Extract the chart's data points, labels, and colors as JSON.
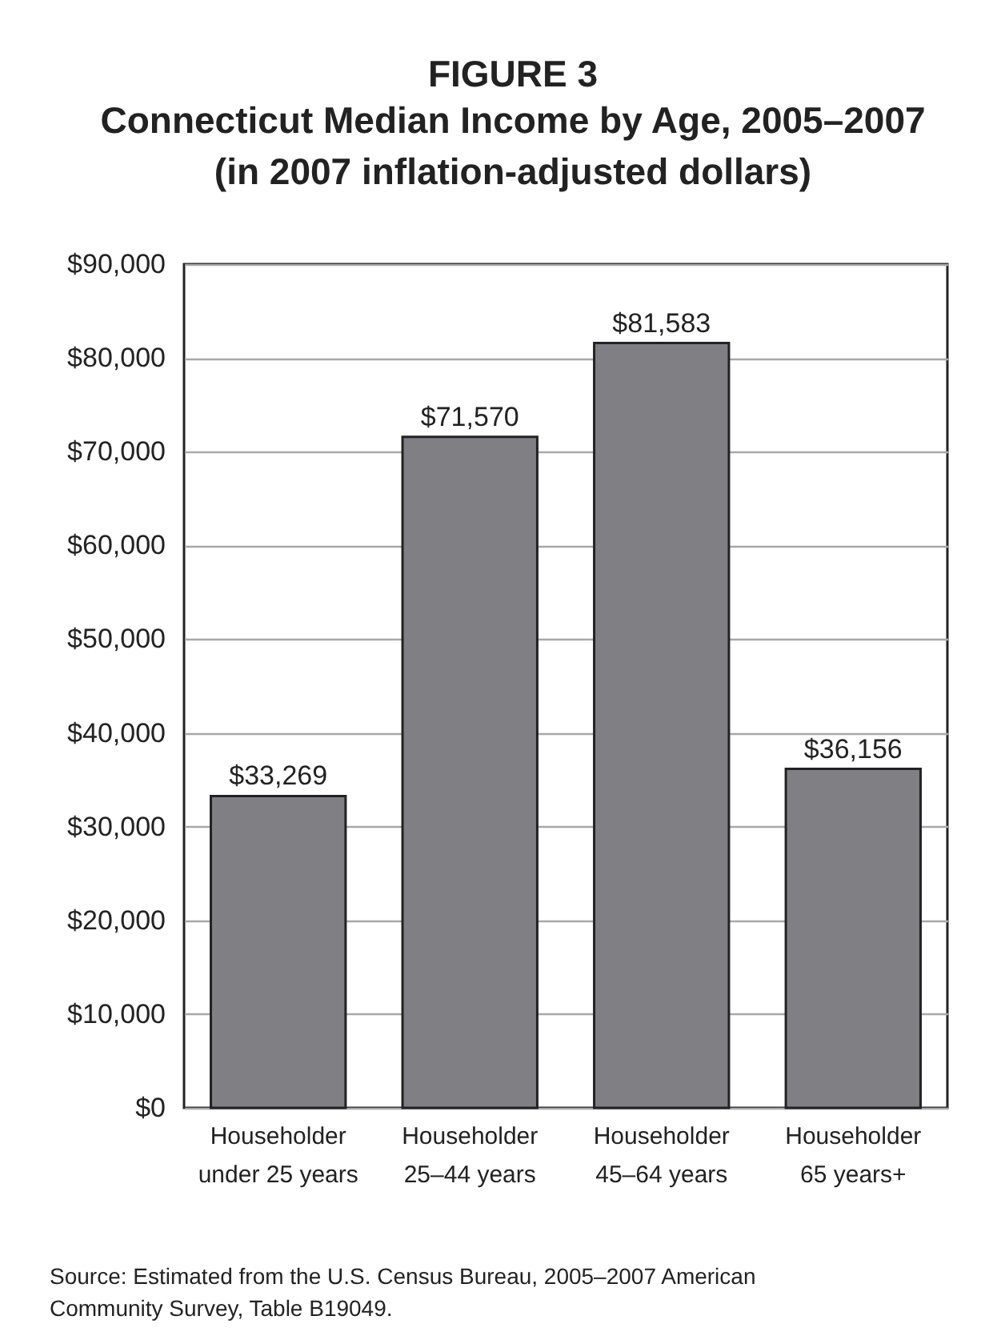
{
  "chart_data": {
    "type": "bar",
    "title": "FIGURE 3",
    "subtitle": "Connecticut Median Income by Age, 2005–2007\n(in 2007 inflation-adjusted dollars)",
    "categories": [
      "Householder\nunder 25 years",
      "Householder\n25–44 years",
      "Householder\n45–64 years",
      "Householder\n65 years+"
    ],
    "values": [
      33269,
      71570,
      81583,
      36156
    ],
    "value_labels": [
      "$33,269",
      "$71,570",
      "$81,583",
      "$36,156"
    ],
    "color": "#808084",
    "ylim": [
      0,
      90000
    ],
    "yticks": [
      {
        "value": 0,
        "label": "$0"
      },
      {
        "value": 10000,
        "label": "$10,000"
      },
      {
        "value": 20000,
        "label": "$20,000"
      },
      {
        "value": 30000,
        "label": "$30,000"
      },
      {
        "value": 40000,
        "label": "$40,000"
      },
      {
        "value": 50000,
        "label": "$50,000"
      },
      {
        "value": 60000,
        "label": "$60,000"
      },
      {
        "value": 70000,
        "label": "$70,000"
      },
      {
        "value": 80000,
        "label": "$80,000"
      },
      {
        "value": 90000,
        "label": "$90,000"
      }
    ],
    "grid": "y",
    "annotations": [
      "Source: Estimated from the U.S. Census Bureau, 2005–2007 American\nCommunity Survey, Table B19049."
    ]
  }
}
